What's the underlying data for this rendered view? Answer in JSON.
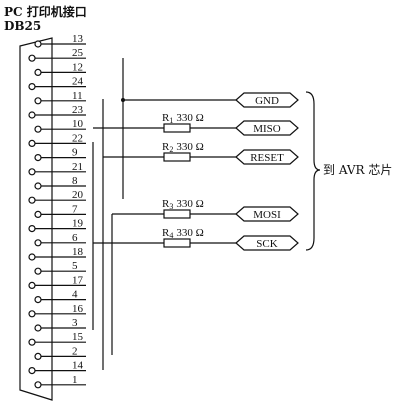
{
  "title": {
    "line1": "PC 打印机接口",
    "line2": "DB25"
  },
  "pins": [
    {
      "num": "13"
    },
    {
      "num": "25"
    },
    {
      "num": "12"
    },
    {
      "num": "24"
    },
    {
      "num": "11"
    },
    {
      "num": "23"
    },
    {
      "num": "10"
    },
    {
      "num": "22"
    },
    {
      "num": "9"
    },
    {
      "num": "21"
    },
    {
      "num": "8"
    },
    {
      "num": "20"
    },
    {
      "num": "7"
    },
    {
      "num": "19"
    },
    {
      "num": "6"
    },
    {
      "num": "18"
    },
    {
      "num": "5"
    },
    {
      "num": "17"
    },
    {
      "num": "4"
    },
    {
      "num": "16"
    },
    {
      "num": "3"
    },
    {
      "num": "15"
    },
    {
      "num": "2"
    },
    {
      "num": "14"
    },
    {
      "num": "1"
    }
  ],
  "signals": [
    {
      "label": "GND"
    },
    {
      "label": "MISO",
      "resistor": "R",
      "resistor_sub": "1",
      "value": "330 Ω"
    },
    {
      "label": "RESET",
      "resistor": "R",
      "resistor_sub": "2",
      "value": "330 Ω"
    },
    {
      "label": "MOSI",
      "resistor": "R",
      "resistor_sub": "3",
      "value": "330 Ω"
    },
    {
      "label": "SCK",
      "resistor": "R",
      "resistor_sub": "4",
      "value": "330 Ω"
    }
  ],
  "target": "到 AVR 芯片",
  "colors": {
    "ink": "#111111",
    "background": "#ffffff"
  }
}
